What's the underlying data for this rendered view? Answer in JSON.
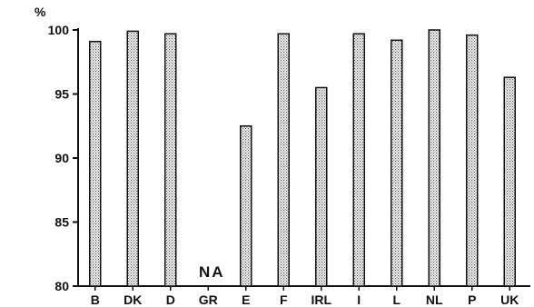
{
  "chart_data": {
    "type": "bar",
    "ylabel": "%",
    "ylim": [
      80,
      100
    ],
    "yticks": [
      "100",
      "95",
      "90",
      "85",
      "80"
    ],
    "categories": [
      "B",
      "DK",
      "D",
      "GR",
      "E",
      "F",
      "IRL",
      "I",
      "L",
      "NL",
      "P",
      "UK"
    ],
    "values": [
      99.1,
      99.9,
      99.7,
      null,
      92.5,
      99.7,
      95.5,
      99.7,
      99.2,
      100,
      99.6,
      96.3
    ],
    "missing_label": "NA",
    "grid": false,
    "bar_fill": "#d8d8d8"
  }
}
